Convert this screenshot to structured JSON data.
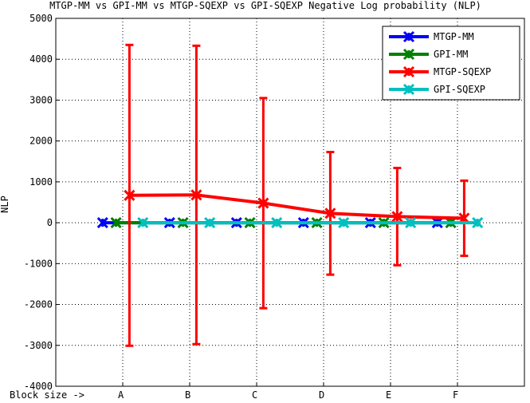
{
  "chart_data": {
    "type": "errorbar-line",
    "title": "MTGP-MM vs GPI-MM vs MTGP-SQEXP vs GPI-SQEXP Negative Log probability (NLP)",
    "y_label": "NLP",
    "xlim": [
      0,
      7
    ],
    "xticks": [
      {
        "value": 0,
        "label": "Block size ->"
      },
      {
        "value": 1,
        "label": "A"
      },
      {
        "value": 2,
        "label": "B"
      },
      {
        "value": 3,
        "label": "C"
      },
      {
        "value": 4,
        "label": "D"
      },
      {
        "value": 5,
        "label": "E"
      },
      {
        "value": 6,
        "label": "F"
      }
    ],
    "ylim": [
      -4000,
      5000
    ],
    "yticks": [
      -4000,
      -3000,
      -2000,
      -1000,
      0,
      1000,
      2000,
      3000,
      4000,
      5000
    ],
    "grid": true,
    "legend_position": "upper right",
    "series": [
      {
        "name": "MTGP-MM",
        "color": "#0000ff",
        "x": [
          0.7,
          1.7,
          2.7,
          3.7,
          4.7,
          5.7
        ],
        "values": [
          0,
          0,
          0,
          0,
          0,
          0
        ]
      },
      {
        "name": "GPI-MM",
        "color": "#008000",
        "x": [
          0.9,
          1.9,
          2.9,
          3.9,
          4.9,
          5.9
        ],
        "values": [
          0,
          0,
          0,
          0,
          0,
          0
        ]
      },
      {
        "name": "MTGP-SQEXP",
        "color": "#ff0000",
        "x": [
          1.1,
          2.1,
          3.1,
          4.1,
          5.1,
          6.1
        ],
        "values": [
          670,
          680,
          480,
          230,
          150,
          110
        ],
        "errors": [
          3680,
          3650,
          2570,
          1500,
          1190,
          920
        ]
      },
      {
        "name": "GPI-SQEXP",
        "color": "#00bfbf",
        "x": [
          1.3,
          2.3,
          3.3,
          4.3,
          5.3,
          6.3
        ],
        "values": [
          0,
          0,
          0,
          0,
          0,
          0
        ]
      }
    ]
  }
}
